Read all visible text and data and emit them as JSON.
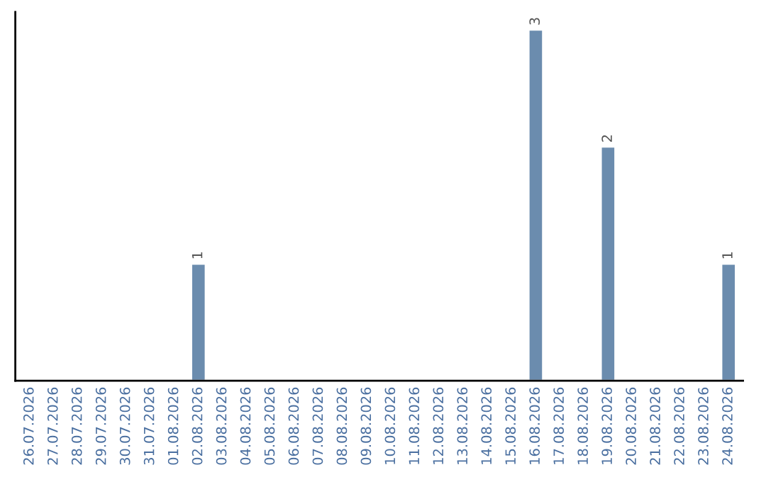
{
  "chart_data": {
    "type": "bar",
    "categories": [
      "26.07.2026",
      "27.07.2026",
      "28.07.2026",
      "29.07.2026",
      "30.07.2026",
      "31.07.2026",
      "01.08.2026",
      "02.08.2026",
      "03.08.2026",
      "04.08.2026",
      "05.08.2026",
      "06.08.2026",
      "07.08.2026",
      "08.08.2026",
      "09.08.2026",
      "10.08.2026",
      "11.08.2026",
      "12.08.2026",
      "13.08.2026",
      "14.08.2026",
      "15.08.2026",
      "16.08.2026",
      "17.08.2026",
      "18.08.2026",
      "19.08.2026",
      "20.08.2026",
      "21.08.2026",
      "22.08.2026",
      "23.08.2026",
      "24.08.2026"
    ],
    "values": [
      null,
      null,
      null,
      null,
      null,
      null,
      null,
      1,
      null,
      null,
      null,
      null,
      null,
      null,
      null,
      null,
      null,
      null,
      null,
      null,
      null,
      3,
      null,
      null,
      2,
      null,
      null,
      null,
      null,
      1
    ],
    "value_labels": [
      null,
      null,
      null,
      null,
      null,
      null,
      null,
      "1",
      null,
      null,
      null,
      null,
      null,
      null,
      null,
      null,
      null,
      null,
      null,
      null,
      null,
      "3",
      null,
      null,
      "2",
      null,
      null,
      null,
      null,
      "1"
    ],
    "color": "#6b8cae",
    "tick_labels": "x",
    "grid": false,
    "legend": false
  }
}
